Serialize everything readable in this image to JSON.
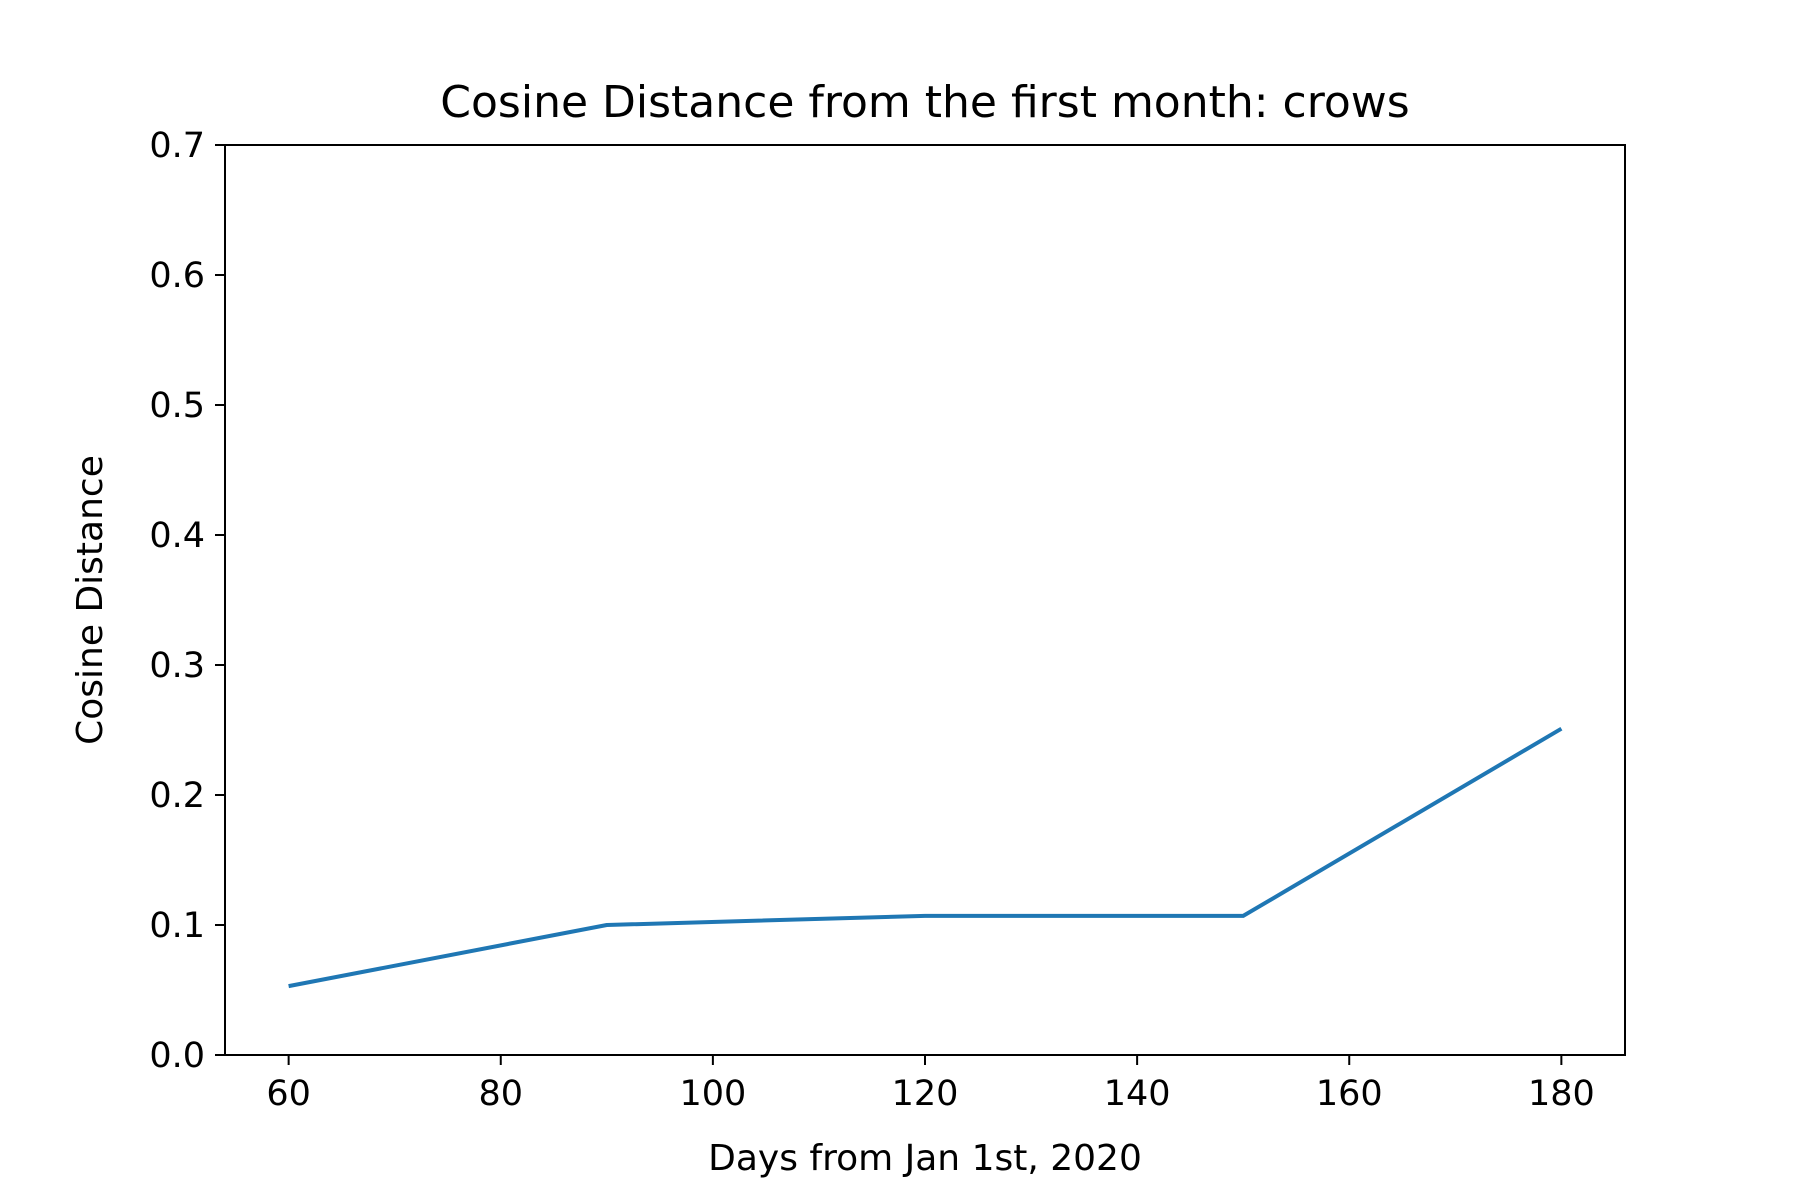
{
  "chart_data": {
    "type": "line",
    "title": "Cosine Distance from the first month: crows",
    "xlabel": "Days from Jan 1st, 2020",
    "ylabel": "Cosine Distance",
    "xlim": [
      54,
      186
    ],
    "ylim": [
      0.0,
      0.7
    ],
    "x_ticks": [
      "60",
      "80",
      "100",
      "120",
      "140",
      "160",
      "180"
    ],
    "x_tick_values": [
      60,
      80,
      100,
      120,
      140,
      160,
      180
    ],
    "y_ticks": [
      "0.0",
      "0.1",
      "0.2",
      "0.3",
      "0.4",
      "0.5",
      "0.6",
      "0.7"
    ],
    "y_tick_values": [
      0.0,
      0.1,
      0.2,
      0.3,
      0.4,
      0.5,
      0.6,
      0.7
    ],
    "grid": false,
    "series": [
      {
        "color": "#1f77b4",
        "x": [
          60,
          90,
          120,
          150,
          180
        ],
        "y": [
          0.053,
          0.1,
          0.107,
          0.107,
          0.251
        ]
      }
    ]
  }
}
